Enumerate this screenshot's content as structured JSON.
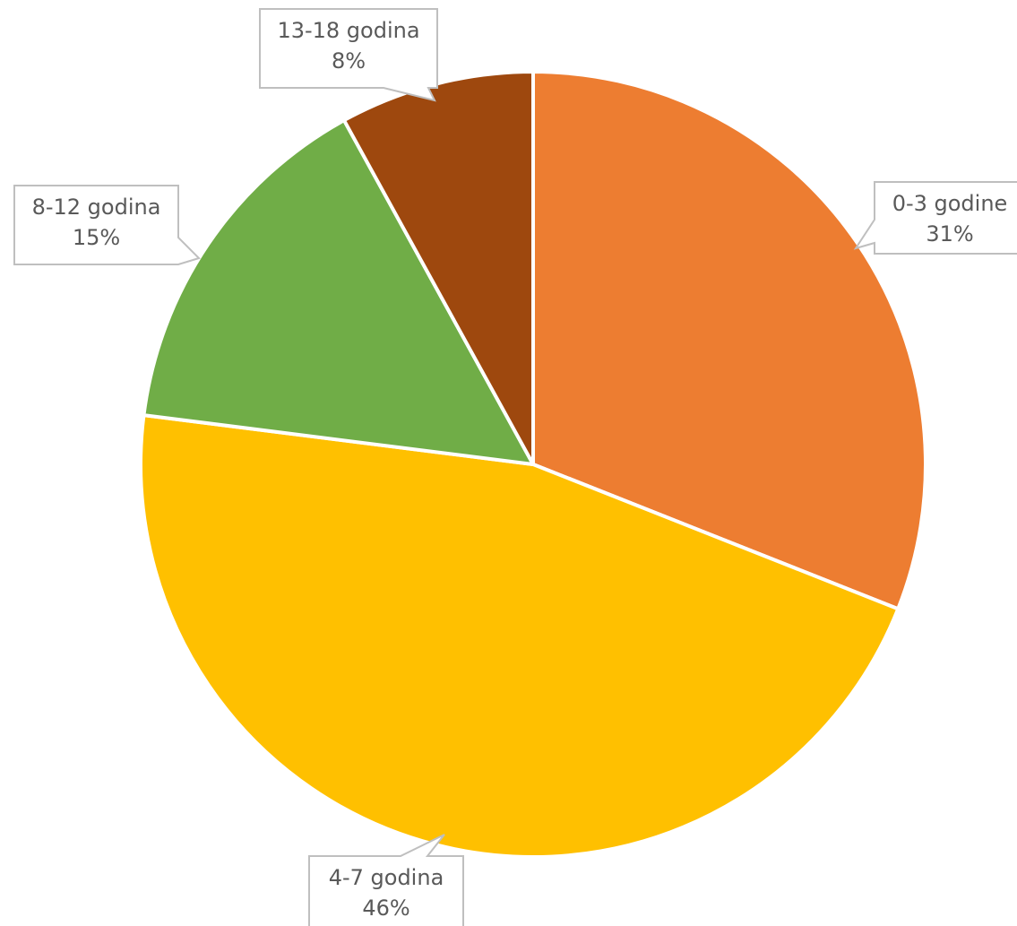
{
  "chart_data": {
    "type": "pie",
    "title": "",
    "categories": [
      "0-3 godine",
      "4-7 godina",
      "8-12 godina",
      "13-18 godina"
    ],
    "values": [
      31,
      46,
      15,
      8
    ],
    "value_labels": [
      "31%",
      "46%",
      "15%",
      "8%"
    ],
    "start_angle_deg": 0,
    "direction": "clockwise",
    "colors": [
      "#ED7D31",
      "#FFC000",
      "#70AD47",
      "#9E480E"
    ],
    "label_style": "callout",
    "legend": "none"
  }
}
